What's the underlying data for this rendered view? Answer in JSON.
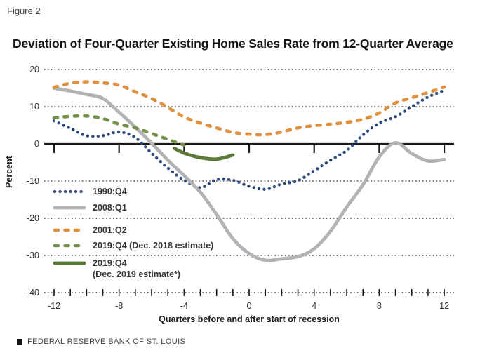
{
  "figure_label": "Figure 2",
  "title": "Deviation of Four-Quarter Existing Home Sales Rate from 12-Quarter Average",
  "footer": {
    "source": "FEDERAL RESERVE BANK OF ST. LOUIS"
  },
  "colors": {
    "blue": "#2c4b7c",
    "gray": "#b1b3b6",
    "orange": "#df9140",
    "green_dashed": "#76934b",
    "green_solid": "#5b7a37",
    "grid": "#4a4a4a",
    "axis": "#1a1a1a"
  },
  "chart_data": {
    "type": "line",
    "title": "Deviation of Four-Quarter Existing Home Sales Rate from 12-Quarter Average",
    "xlabel": "Quarters before and after start of recession",
    "ylabel": "Percent",
    "xlim": [
      -12.6,
      12.6
    ],
    "ylim": [
      -40,
      20
    ],
    "x_ticks": [
      -12,
      -8,
      -4,
      0,
      4,
      8,
      12
    ],
    "y_ticks": [
      20,
      10,
      0,
      -10,
      -20,
      -30,
      -40
    ],
    "grid": "dotted horizontal gridlines, solid zero axis",
    "legend_position": "inside middle-left",
    "series": [
      {
        "name": "1990:Q4",
        "style": "dotted",
        "color": "#2c4b7c",
        "x": [
          -12,
          -11,
          -10,
          -9,
          -8,
          -7,
          -6,
          -5,
          -4,
          -3,
          -2,
          -1,
          0,
          1,
          2,
          3,
          4,
          5,
          6,
          7,
          8,
          9,
          10,
          11,
          12
        ],
        "values": [
          6.2,
          4.2,
          2.2,
          2.2,
          3.2,
          1.7,
          -2.5,
          -6.5,
          -9.8,
          -11.8,
          -9.6,
          -9.8,
          -11.4,
          -12.2,
          -10.8,
          -9.9,
          -7.2,
          -4.4,
          -1.8,
          2.4,
          5.6,
          7.3,
          10.0,
          12.6,
          14.4
        ]
      },
      {
        "name": "2008:Q1",
        "style": "solid",
        "color": "#b1b3b6",
        "x": [
          -12,
          -11,
          -10,
          -9,
          -8,
          -7,
          -6,
          -5,
          -4,
          -3,
          -2,
          -1,
          0,
          1,
          2,
          3,
          4,
          5,
          6,
          7,
          8,
          9,
          10,
          11,
          12
        ],
        "values": [
          15.0,
          14.2,
          13.3,
          12.2,
          8.5,
          4.5,
          0.2,
          -4.4,
          -8.5,
          -13.0,
          -19.0,
          -25.5,
          -29.5,
          -31.3,
          -30.9,
          -30.3,
          -28.2,
          -23.5,
          -17.0,
          -11.0,
          -3.5,
          0.3,
          -2.6,
          -4.6,
          -4.2
        ]
      },
      {
        "name": "2001:Q2",
        "style": "dashed",
        "color": "#df9140",
        "x": [
          -12,
          -11,
          -10,
          -9,
          -8,
          -7,
          -6,
          -5,
          -4,
          -3,
          -2,
          -1,
          0,
          1,
          2,
          3,
          4,
          5,
          6,
          7,
          8,
          9,
          10,
          11,
          12
        ],
        "values": [
          15.2,
          16.3,
          16.7,
          16.4,
          15.8,
          14.0,
          12.2,
          9.8,
          7.2,
          5.6,
          4.3,
          3.1,
          2.6,
          2.5,
          3.2,
          4.3,
          4.9,
          5.3,
          5.8,
          6.6,
          8.3,
          11.0,
          12.4,
          13.8,
          15.3
        ]
      },
      {
        "name": "2019:Q4 (Dec. 2018 estimate)",
        "style": "dashed",
        "color": "#76934b",
        "x": [
          -12,
          -11,
          -10,
          -9,
          -8,
          -7,
          -6,
          -5,
          -4
        ],
        "values": [
          7.0,
          7.4,
          7.5,
          6.8,
          5.3,
          4.3,
          2.8,
          1.2,
          -0.3
        ]
      },
      {
        "name": "2019:Q4 (Dec. 2019 estimate*)",
        "style": "solid",
        "color": "#5b7a37",
        "x": [
          -4.6,
          -4,
          -3,
          -2,
          -1
        ],
        "values": [
          -1.2,
          -2.5,
          -3.7,
          -4.1,
          -3.0
        ]
      }
    ]
  },
  "legend": {
    "items": [
      {
        "series_index": 0,
        "lines": [
          "1990:Q4"
        ]
      },
      {
        "series_index": 1,
        "lines": [
          "2008:Q1"
        ]
      },
      {
        "series_index": 2,
        "lines": [
          "2001:Q2"
        ]
      },
      {
        "series_index": 3,
        "lines": [
          "2019:Q4 (Dec. 2018 estimate)"
        ]
      },
      {
        "series_index": 4,
        "lines": [
          "2019:Q4",
          "(Dec. 2019 estimate*)"
        ]
      }
    ]
  }
}
